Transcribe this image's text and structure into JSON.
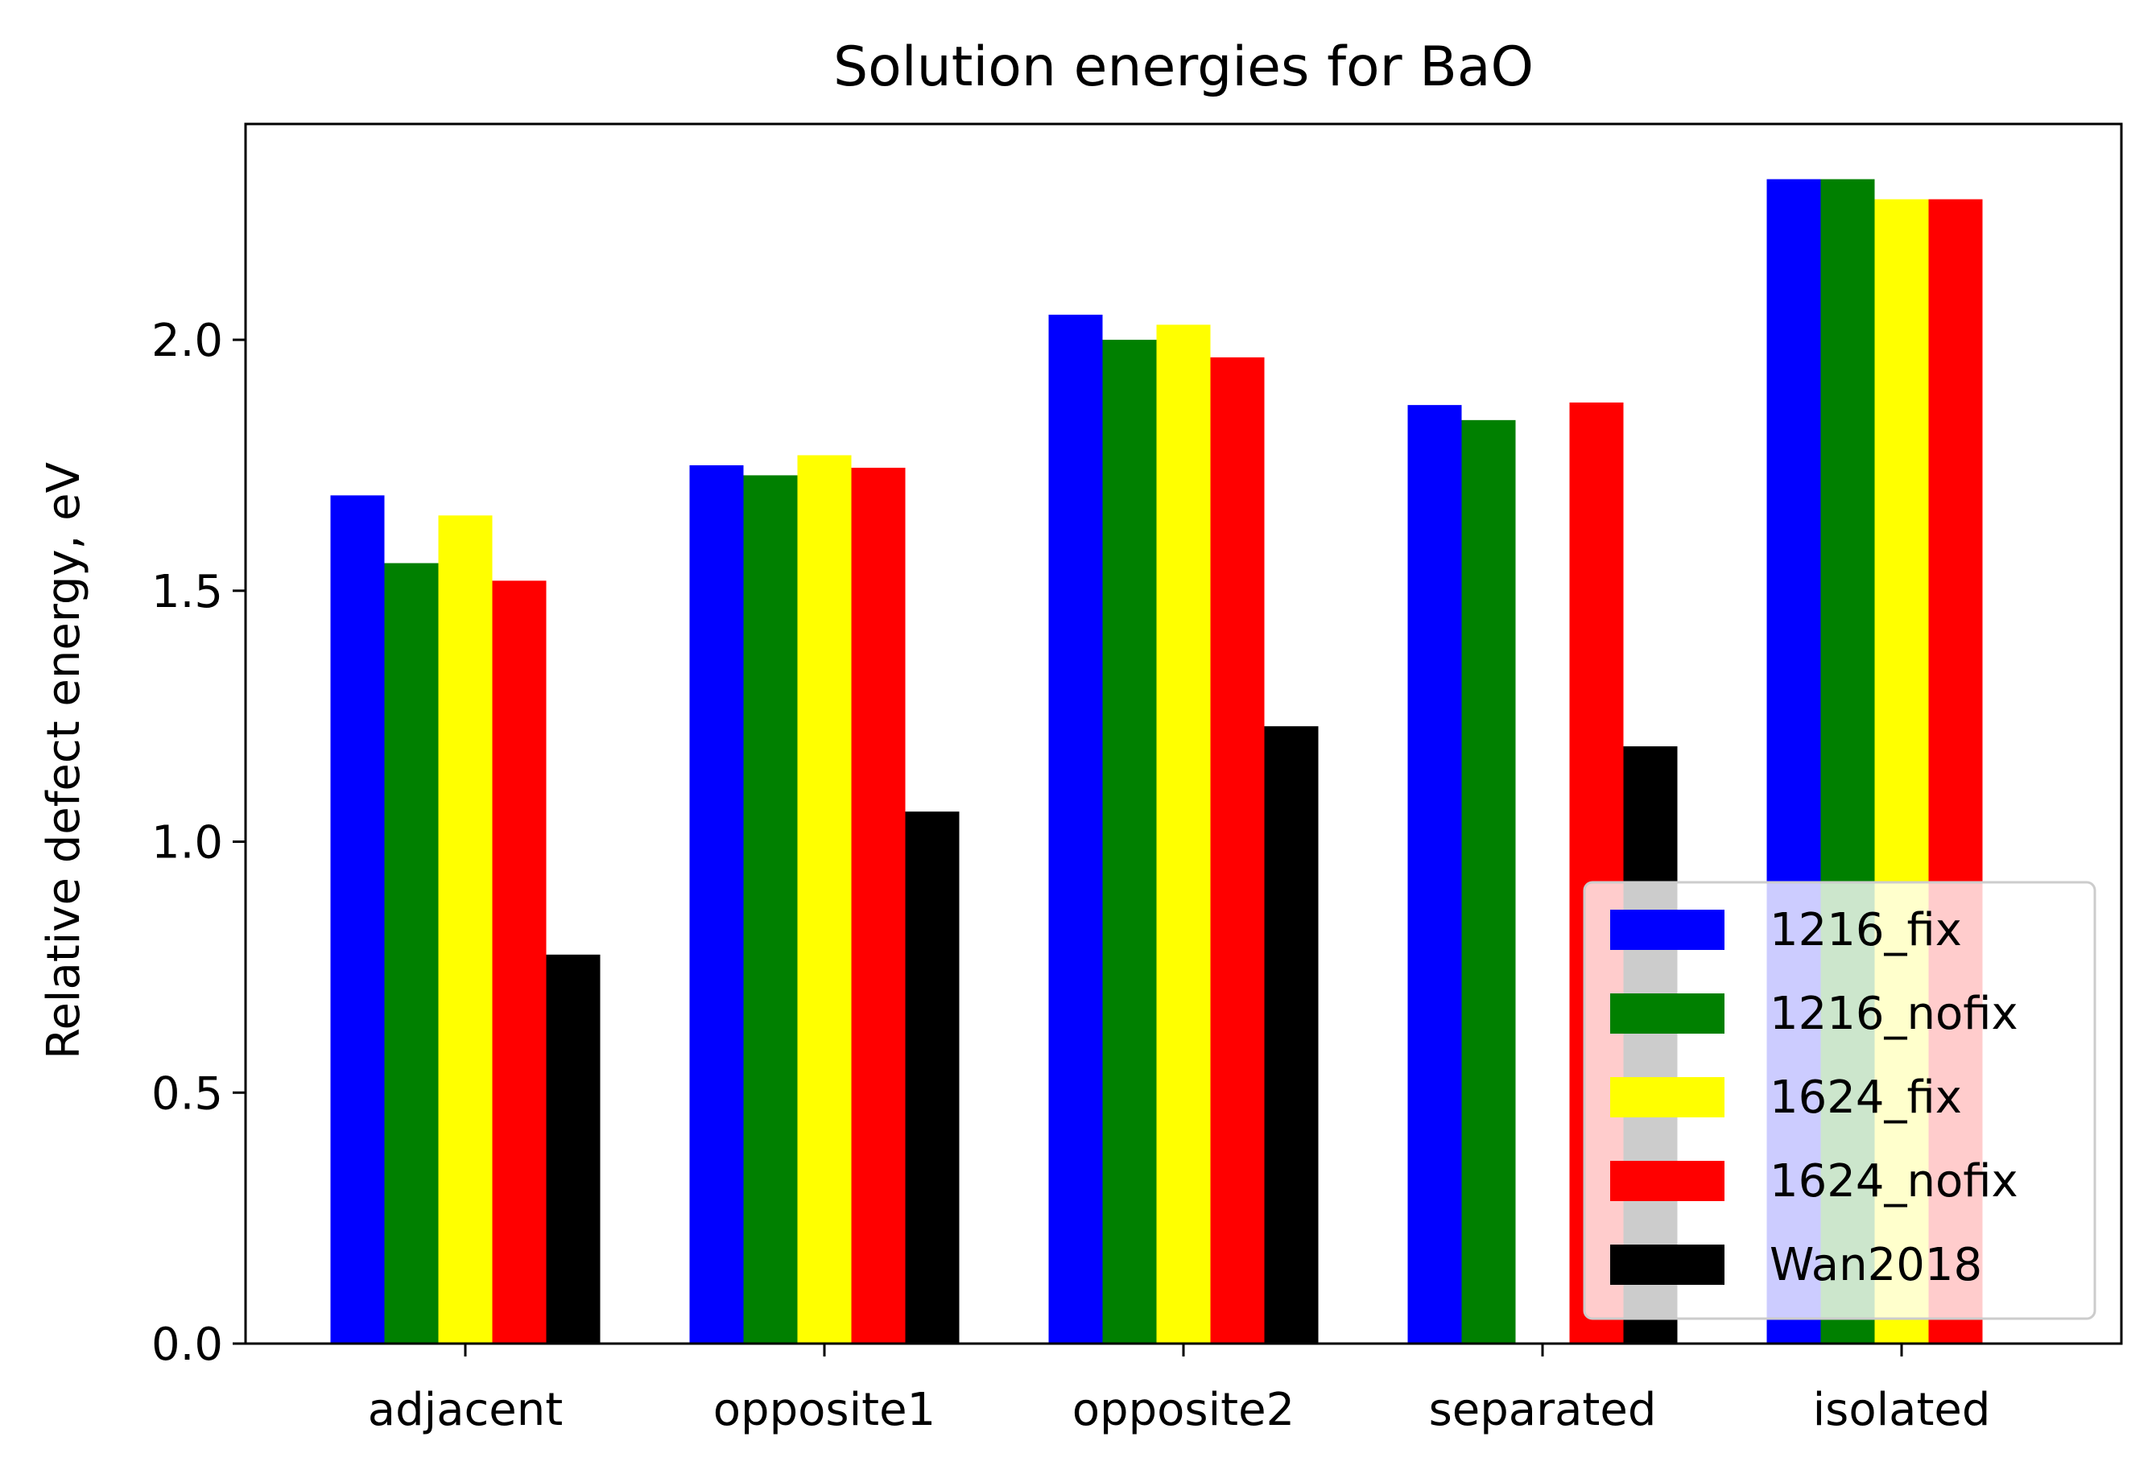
{
  "chart_data": {
    "type": "bar",
    "title": "Solution energies for BaO",
    "xlabel": "",
    "ylabel": "Relative defect energy, eV",
    "ylim": [
      0,
      2.43
    ],
    "yticks": [
      "0.0",
      "0.5",
      "1.0",
      "1.5",
      "2.0"
    ],
    "categories": [
      "adjacent",
      "opposite1",
      "opposite2",
      "separated",
      "isolated"
    ],
    "series": [
      {
        "name": "1216_fix",
        "color": "#0000ff",
        "values": [
          1.69,
          1.75,
          2.05,
          1.87,
          2.32
        ]
      },
      {
        "name": "1216_nofix",
        "color": "#008000",
        "values": [
          1.555,
          1.73,
          2.0,
          1.84,
          2.32
        ]
      },
      {
        "name": "1624_fix",
        "color": "#ffff00",
        "values": [
          1.65,
          1.77,
          2.03,
          0,
          2.28
        ]
      },
      {
        "name": "1624_nofix",
        "color": "#ff0000",
        "values": [
          1.52,
          1.745,
          1.965,
          1.875,
          2.28
        ]
      },
      {
        "name": "Wan2018",
        "color": "#000000",
        "values": [
          0.775,
          1.06,
          1.23,
          1.19,
          0
        ]
      }
    ],
    "grid": false,
    "legend_position": "lower-right"
  }
}
